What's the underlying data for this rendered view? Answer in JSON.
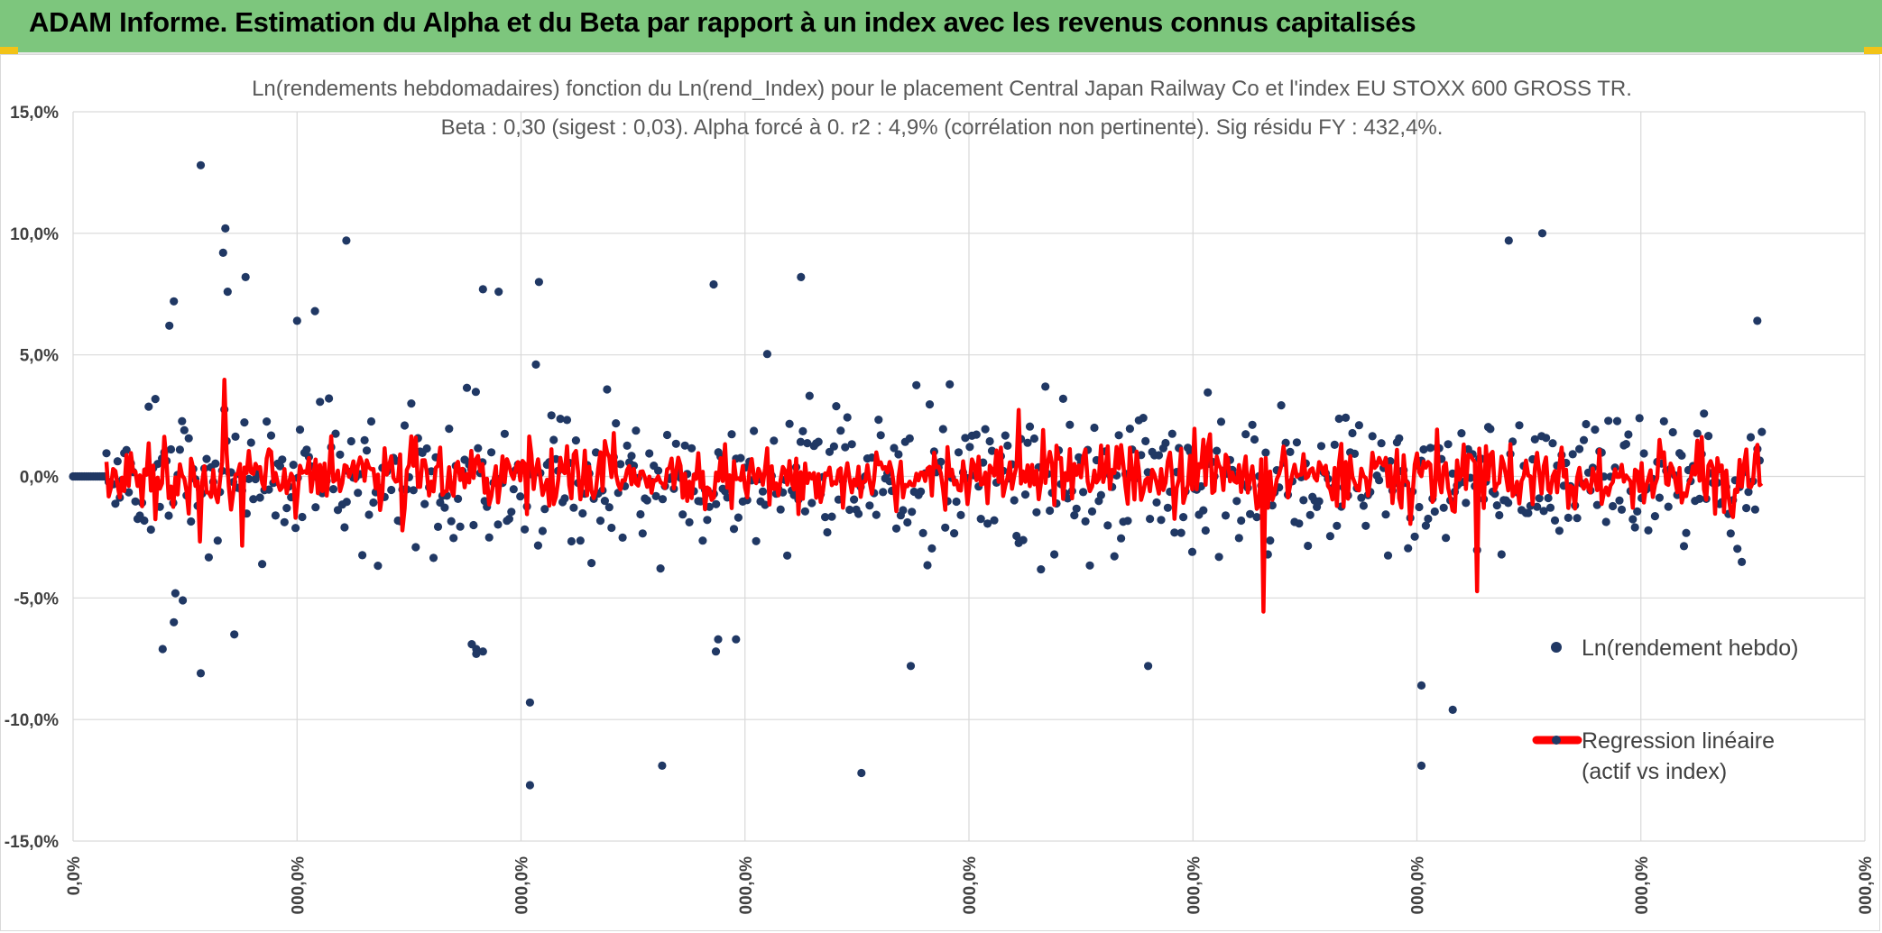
{
  "header": {
    "title": "ADAM Informe. Estimation du Alpha et du Beta par rapport à un index avec les revenus connus capitalisés"
  },
  "colors": {
    "banner": "#7dc67d",
    "accent": "#f2c318",
    "scatter": "#203864",
    "regression": "#ff0000",
    "grid": "#d9d9d9"
  },
  "chart_data": {
    "type": "scatter",
    "title_lines": [
      "Ln(rendements hebdomadaires) fonction du Ln(rend_Index) pour le placement Central Japan Railway Co et l'index EU STOXX 600 GROSS TR.",
      "Beta : 0,30 (sigest : 0,03). Alpha forcé à 0. r2 : 4,9% (corrélation non pertinente). Sig résidu FY : 432,4%."
    ],
    "ylim": [
      -0.15,
      0.15
    ],
    "y_ticks": [
      0.15,
      0.1,
      0.05,
      0.0,
      -0.05,
      -0.1,
      -0.15
    ],
    "y_tick_labels": [
      "15,0%",
      "10,0%",
      "5,0%",
      "0,0%",
      "-5,0%",
      "-10,0%",
      "-15,0%"
    ],
    "xlim": [
      0,
      800
    ],
    "x_ticks": [
      0,
      100,
      200,
      300,
      400,
      500,
      600,
      700,
      800
    ],
    "x_tick_labels": [
      "0,0%",
      "000,0%",
      "000,0%",
      "000,0%",
      "000,0%",
      "000,0%",
      "000,0%",
      "000,0%",
      "000,0%"
    ],
    "beta": 0.3,
    "sigest": 0.03,
    "alpha": 0,
    "r2": 0.049,
    "n_points": 760,
    "flat_start_until": 14,
    "data_end": 755,
    "seed": 7,
    "notable_points": [
      [
        57,
        0.128
      ],
      [
        68,
        0.102
      ],
      [
        67,
        0.092
      ],
      [
        77,
        0.082
      ],
      [
        69,
        0.076
      ],
      [
        45,
        0.072
      ],
      [
        43,
        0.062
      ],
      [
        122,
        0.097
      ],
      [
        100,
        0.064
      ],
      [
        108,
        0.068
      ],
      [
        183,
        0.077
      ],
      [
        190,
        0.076
      ],
      [
        208,
        0.08
      ],
      [
        286,
        0.079
      ],
      [
        325,
        0.082
      ],
      [
        656,
        0.1
      ],
      [
        641,
        0.097
      ],
      [
        752,
        0.064
      ],
      [
        40,
        -0.071
      ],
      [
        57,
        -0.081
      ],
      [
        45,
        -0.06
      ],
      [
        49,
        -0.051
      ],
      [
        180,
        -0.071
      ],
      [
        183,
        -0.072
      ],
      [
        287,
        -0.072
      ],
      [
        288,
        -0.067
      ],
      [
        296,
        -0.067
      ],
      [
        374,
        -0.078
      ],
      [
        204,
        -0.093
      ],
      [
        204,
        -0.127
      ],
      [
        263,
        -0.119
      ],
      [
        352,
        -0.122
      ],
      [
        480,
        -0.078
      ],
      [
        602,
        -0.086
      ],
      [
        602,
        -0.119
      ],
      [
        616,
        -0.096
      ],
      [
        72,
        -0.065
      ],
      [
        178,
        -0.069
      ],
      [
        180,
        -0.073
      ]
    ],
    "series": [
      {
        "name": "Ln(rendement hebdo)",
        "kind": "scatter"
      },
      {
        "name": "Regression linéaire (actif vs index)",
        "kind": "line"
      }
    ],
    "legend": {
      "position": "right",
      "entries": [
        {
          "lines": [
            "Ln(rendement hebdo)"
          ]
        },
        {
          "lines": [
            "Regression linéaire",
            "(actif vs index)"
          ]
        }
      ]
    }
  }
}
